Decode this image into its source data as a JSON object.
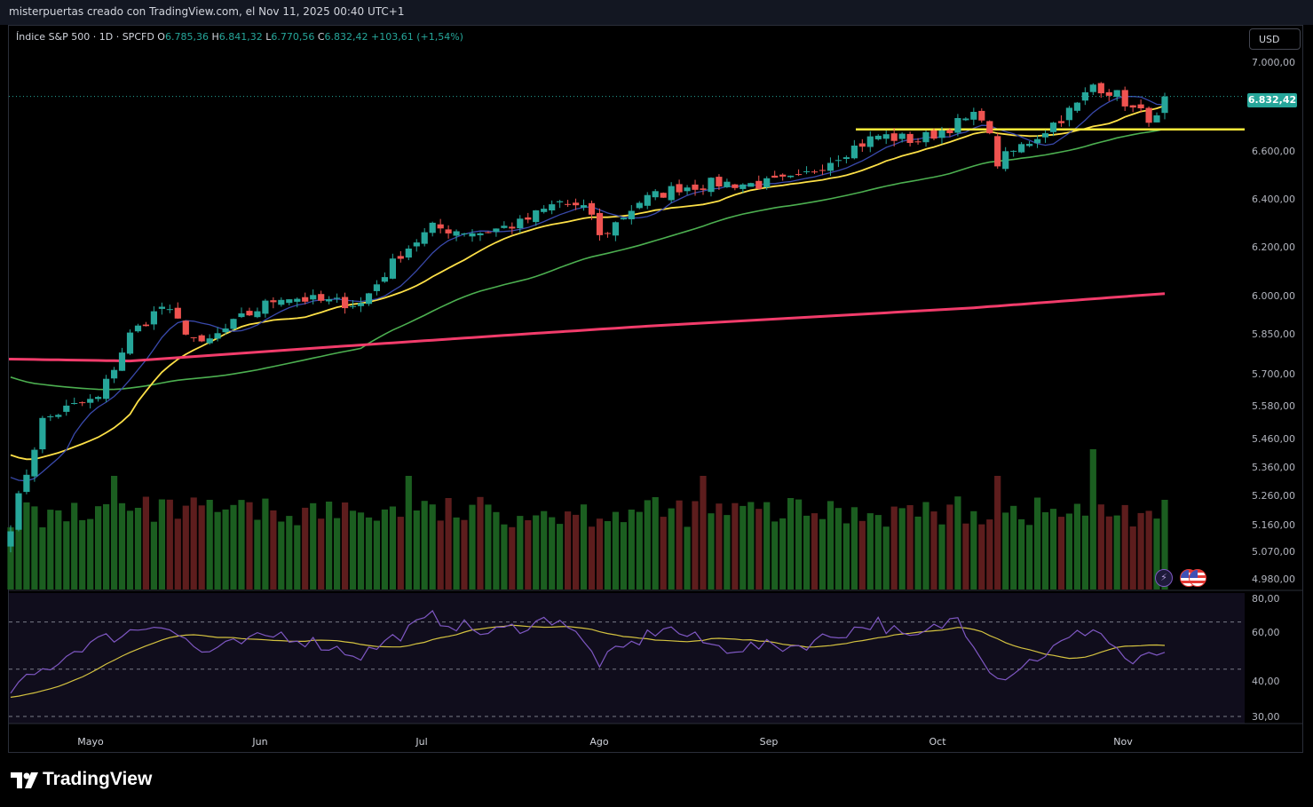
{
  "header": {
    "credit": "misterpuertas creado con TradingView.com, el Nov 11, 2025 00:40 UTC+1"
  },
  "legend": {
    "symbol": "Índice S&P 500 · 1D · SPCFD",
    "open_label": "O",
    "open": "6.785,36",
    "high_label": "H",
    "high": "6.841,32",
    "low_label": "L",
    "low": "6.770,56",
    "close_label": "C",
    "close": "6.832,42",
    "change": "+103,61 (+1,54%)"
  },
  "currency": "USD",
  "last_price": "6.832,42",
  "footer": {
    "brand": "TradingView"
  },
  "icons": {
    "bolt": "lightning-icon",
    "flag": "us-flag-icon"
  },
  "colors": {
    "up": "#26a69a",
    "down": "#ef5350",
    "vol_up": "#1b5e20",
    "vol_down": "#5d1d1d",
    "ma_blue": "#3949ab",
    "ma_yellow": "#fde047",
    "ma_green": "#4caf50",
    "ma_red": "#f23c6b",
    "hline": "#ffeb3b",
    "rsi": "#7e57c2",
    "rsi_ma": "#d4c240"
  },
  "chart_data": [
    {
      "type": "candlestick",
      "title": "",
      "x_tick_labels": [
        "Mayo",
        "Jun",
        "Jul",
        "Ago",
        "Sep",
        "Oct",
        "Nov"
      ],
      "y_tick_labels": [
        "7.000,00",
        "6.800,00",
        "6.600,00",
        "6.400,00",
        "6.200,00",
        "6.000,00",
        "5.850,00",
        "5.700,00",
        "5.580,00",
        "5.460,00",
        "5.360,00",
        "5.260,00",
        "5.160,00",
        "5.070,00",
        "4.980,00"
      ],
      "y_scale": "log",
      "ylim": [
        4950,
        7060
      ],
      "horizontal_line": 6690,
      "moving_averages": [
        {
          "color": "blue",
          "last": 6790
        },
        {
          "color": "yellow",
          "last": 6750
        },
        {
          "color": "green",
          "last": 6680
        },
        {
          "color": "red",
          "last": 6135
        }
      ],
      "close_points": [
        {
          "x": "Apr 21",
          "y": 5158
        },
        {
          "x": "Apr 25",
          "y": 5525
        },
        {
          "x": "Apr 30",
          "y": 5569
        },
        {
          "x": "May 06",
          "y": 5607
        },
        {
          "x": "May 12",
          "y": 5845
        },
        {
          "x": "May 16",
          "y": 5958
        },
        {
          "x": "May 23",
          "y": 5802
        },
        {
          "x": "May 30",
          "y": 5911
        },
        {
          "x": "Jun 06",
          "y": 6000
        },
        {
          "x": "Jun 13",
          "y": 5977
        },
        {
          "x": "Jun 20",
          "y": 5968
        },
        {
          "x": "Jun 27",
          "y": 6173
        },
        {
          "x": "Jul 03",
          "y": 6279
        },
        {
          "x": "Jul 11",
          "y": 6260
        },
        {
          "x": "Jul 18",
          "y": 6297
        },
        {
          "x": "Jul 25",
          "y": 6389
        },
        {
          "x": "Jul 31",
          "y": 6339
        },
        {
          "x": "Aug 01",
          "y": 6238
        },
        {
          "x": "Aug 08",
          "y": 6389
        },
        {
          "x": "Aug 15",
          "y": 6449
        },
        {
          "x": "Aug 22",
          "y": 6466
        },
        {
          "x": "Aug 29",
          "y": 6460
        },
        {
          "x": "Sep 05",
          "y": 6481
        },
        {
          "x": "Sep 12",
          "y": 6584
        },
        {
          "x": "Sep 19",
          "y": 6664
        },
        {
          "x": "Sep 26",
          "y": 6643
        },
        {
          "x": "Oct 03",
          "y": 6715
        },
        {
          "x": "Oct 08",
          "y": 6753
        },
        {
          "x": "Oct 10",
          "y": 6552
        },
        {
          "x": "Oct 17",
          "y": 6664
        },
        {
          "x": "Oct 24",
          "y": 6791
        },
        {
          "x": "Oct 28",
          "y": 6890
        },
        {
          "x": "Oct 31",
          "y": 6840
        },
        {
          "x": "Nov 04",
          "y": 6771
        },
        {
          "x": "Nov 07",
          "y": 6728
        },
        {
          "x": "Nov 10",
          "y": 6832
        }
      ]
    },
    {
      "type": "bar",
      "title": "",
      "note": "volume histogram, green = up day, red = down day"
    },
    {
      "type": "line",
      "title": "",
      "y_tick_labels": [
        "80,00",
        "60,00",
        "40,00",
        "30,00"
      ],
      "ylim": [
        30,
        80
      ],
      "guide_levels": [
        70,
        50,
        30
      ],
      "rsi_points": [
        {
          "x": "Apr 21",
          "y": 41
        },
        {
          "x": "May 02",
          "y": 60
        },
        {
          "x": "May 16",
          "y": 70
        },
        {
          "x": "May 23",
          "y": 57
        },
        {
          "x": "Jun 06",
          "y": 65
        },
        {
          "x": "Jun 20",
          "y": 56
        },
        {
          "x": "Jul 03",
          "y": 72
        },
        {
          "x": "Jul 14",
          "y": 65
        },
        {
          "x": "Jul 25",
          "y": 72
        },
        {
          "x": "Aug 01",
          "y": 53
        },
        {
          "x": "Aug 13",
          "y": 68
        },
        {
          "x": "Aug 22",
          "y": 59
        },
        {
          "x": "Sep 05",
          "y": 60
        },
        {
          "x": "Sep 19",
          "y": 70
        },
        {
          "x": "Sep 25",
          "y": 62
        },
        {
          "x": "Oct 03",
          "y": 72
        },
        {
          "x": "Oct 10",
          "y": 46
        },
        {
          "x": "Oct 17",
          "y": 55
        },
        {
          "x": "Oct 28",
          "y": 68
        },
        {
          "x": "Nov 04",
          "y": 52
        },
        {
          "x": "Nov 10",
          "y": 58
        }
      ]
    }
  ]
}
